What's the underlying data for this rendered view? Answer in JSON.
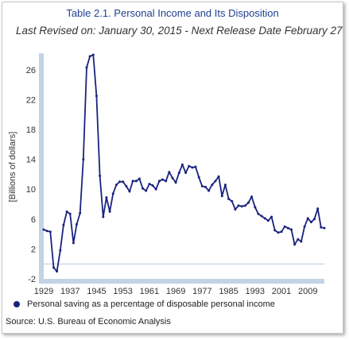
{
  "chart_data": {
    "type": "line",
    "title": "Table 2.1. Personal Income and Its Disposition",
    "subtitle": "Last Revised on: January 30, 2015 - Next Release Date February 27,",
    "ylabel": "[Billions of dollars]",
    "xlabel": "",
    "ylim": [
      -2,
      28
    ],
    "xlim": [
      1929,
      2014
    ],
    "y_ticks": [
      "-2",
      "2",
      "6",
      "10",
      "14",
      "18",
      "22",
      "26"
    ],
    "x_ticks": [
      "1929",
      "1937",
      "1945",
      "1953",
      "1961",
      "1969",
      "1977",
      "1985",
      "1993",
      "2001",
      "2009"
    ],
    "grid": false,
    "legend_position": "bottom",
    "series": [
      {
        "name": "Personal saving as a percentage of disposable personal income",
        "color": "#1a237e",
        "x": [
          1929,
          1930,
          1931,
          1932,
          1933,
          1934,
          1935,
          1936,
          1937,
          1938,
          1939,
          1940,
          1941,
          1942,
          1943,
          1944,
          1945,
          1946,
          1947,
          1948,
          1949,
          1950,
          1951,
          1952,
          1953,
          1954,
          1955,
          1956,
          1957,
          1958,
          1959,
          1960,
          1961,
          1962,
          1963,
          1964,
          1965,
          1966,
          1967,
          1968,
          1969,
          1970,
          1971,
          1972,
          1973,
          1974,
          1975,
          1976,
          1977,
          1978,
          1979,
          1980,
          1981,
          1982,
          1983,
          1984,
          1985,
          1986,
          1987,
          1988,
          1989,
          1990,
          1991,
          1992,
          1993,
          1994,
          1995,
          1996,
          1997,
          1998,
          1999,
          2000,
          2001,
          2002,
          2003,
          2004,
          2005,
          2006,
          2007,
          2008,
          2009,
          2010,
          2011,
          2012,
          2013,
          2014
        ],
        "values": [
          4.6,
          4.4,
          4.3,
          -0.5,
          -1.0,
          1.8,
          5.2,
          7.0,
          6.7,
          2.8,
          5.3,
          6.8,
          14.0,
          26.3,
          27.8,
          28.0,
          22.5,
          11.8,
          6.3,
          8.9,
          7.0,
          9.4,
          10.6,
          11.0,
          11.0,
          10.4,
          9.7,
          11.1,
          11.1,
          11.4,
          10.1,
          9.8,
          10.7,
          10.5,
          10.0,
          11.1,
          11.3,
          11.1,
          12.3,
          11.5,
          10.9,
          12.2,
          13.3,
          12.2,
          13.1,
          12.9,
          13.0,
          11.6,
          10.4,
          10.3,
          9.8,
          10.6,
          11.1,
          11.7,
          9.1,
          10.6,
          8.7,
          8.4,
          7.3,
          7.8,
          7.7,
          7.8,
          8.2,
          9.0,
          7.6,
          6.7,
          6.4,
          6.1,
          5.8,
          6.3,
          4.5,
          4.2,
          4.3,
          5.0,
          4.8,
          4.6,
          2.6,
          3.3,
          3.0,
          5.0,
          6.1,
          5.6,
          6.0,
          7.4,
          4.9,
          4.8
        ]
      }
    ]
  },
  "source": "Source: U.S. Bureau of Economic Analysis"
}
